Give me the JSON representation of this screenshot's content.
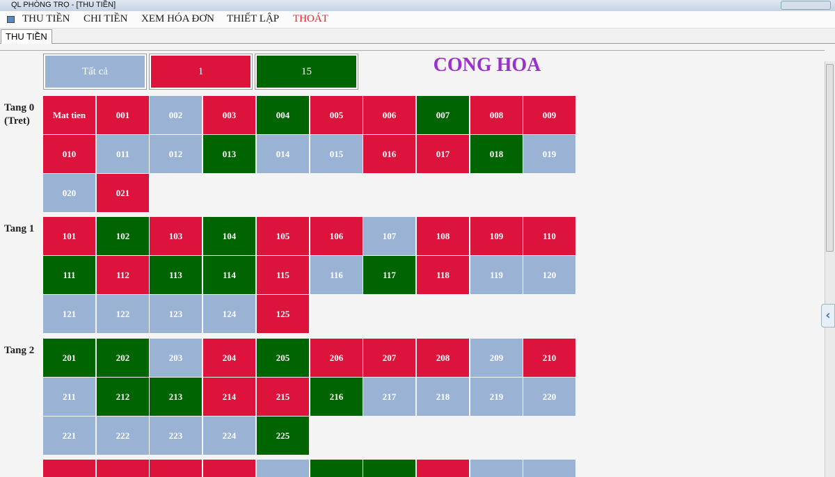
{
  "window": {
    "title": "QL PHÒNG TRỌ - [THU TIỀN]"
  },
  "menu": [
    {
      "label": "THU TIỀN",
      "color": "#1a1a1a"
    },
    {
      "label": "CHI TIỀN",
      "color": "#1a1a1a"
    },
    {
      "label": "XEM HÓA ĐƠN",
      "color": "#1a1a1a"
    },
    {
      "label": "THIẾT LẬP",
      "color": "#1a1a1a"
    },
    {
      "label": "THOÁT",
      "color": "#e0242c"
    }
  ],
  "tab": "THU TIỀN",
  "filters": [
    {
      "label": "Tất cả",
      "color": "#9ab3d5"
    },
    {
      "label": "1",
      "color": "#dc143c"
    },
    {
      "label": "15",
      "color": "#006400"
    }
  ],
  "heading": "CONG HOA",
  "floors": [
    {
      "label": [
        "Tang 0",
        "(Tret)"
      ],
      "rooms": [
        {
          "label": "Mat tien",
          "color": "#dc143c"
        },
        {
          "label": "001",
          "color": "#dc143c"
        },
        {
          "label": "002",
          "color": "#9ab3d5"
        },
        {
          "label": "003",
          "color": "#dc143c"
        },
        {
          "label": "004",
          "color": "#006400"
        },
        {
          "label": "005",
          "color": "#dc143c"
        },
        {
          "label": "006",
          "color": "#dc143c"
        },
        {
          "label": "007",
          "color": "#006400"
        },
        {
          "label": "008",
          "color": "#dc143c"
        },
        {
          "label": "009",
          "color": "#dc143c"
        },
        {
          "label": "010",
          "color": "#dc143c"
        },
        {
          "label": "011",
          "color": "#9ab3d5"
        },
        {
          "label": "012",
          "color": "#9ab3d5"
        },
        {
          "label": "013",
          "color": "#006400"
        },
        {
          "label": "014",
          "color": "#9ab3d5"
        },
        {
          "label": "015",
          "color": "#9ab3d5"
        },
        {
          "label": "016",
          "color": "#dc143c"
        },
        {
          "label": "017",
          "color": "#dc143c"
        },
        {
          "label": "018",
          "color": "#006400"
        },
        {
          "label": "019",
          "color": "#9ab3d5"
        },
        {
          "label": "020",
          "color": "#9ab3d5"
        },
        {
          "label": "021",
          "color": "#dc143c"
        }
      ]
    },
    {
      "label": [
        "Tang 1"
      ],
      "rooms": [
        {
          "label": "101",
          "color": "#dc143c"
        },
        {
          "label": "102",
          "color": "#006400"
        },
        {
          "label": "103",
          "color": "#dc143c"
        },
        {
          "label": "104",
          "color": "#006400"
        },
        {
          "label": "105",
          "color": "#dc143c"
        },
        {
          "label": "106",
          "color": "#dc143c"
        },
        {
          "label": "107",
          "color": "#9ab3d5"
        },
        {
          "label": "108",
          "color": "#dc143c"
        },
        {
          "label": "109",
          "color": "#dc143c"
        },
        {
          "label": "110",
          "color": "#dc143c"
        },
        {
          "label": "111",
          "color": "#006400"
        },
        {
          "label": "112",
          "color": "#dc143c"
        },
        {
          "label": "113",
          "color": "#006400"
        },
        {
          "label": "114",
          "color": "#006400"
        },
        {
          "label": "115",
          "color": "#dc143c"
        },
        {
          "label": "116",
          "color": "#9ab3d5"
        },
        {
          "label": "117",
          "color": "#006400"
        },
        {
          "label": "118",
          "color": "#dc143c"
        },
        {
          "label": "119",
          "color": "#9ab3d5"
        },
        {
          "label": "120",
          "color": "#9ab3d5"
        },
        {
          "label": "121",
          "color": "#9ab3d5"
        },
        {
          "label": "122",
          "color": "#9ab3d5"
        },
        {
          "label": "123",
          "color": "#9ab3d5"
        },
        {
          "label": "124",
          "color": "#9ab3d5"
        },
        {
          "label": "125",
          "color": "#dc143c"
        }
      ]
    },
    {
      "label": [
        "Tang 2"
      ],
      "rooms": [
        {
          "label": "201",
          "color": "#006400"
        },
        {
          "label": "202",
          "color": "#006400"
        },
        {
          "label": "203",
          "color": "#9ab3d5"
        },
        {
          "label": "204",
          "color": "#dc143c"
        },
        {
          "label": "205",
          "color": "#006400"
        },
        {
          "label": "206",
          "color": "#dc143c"
        },
        {
          "label": "207",
          "color": "#dc143c"
        },
        {
          "label": "208",
          "color": "#dc143c"
        },
        {
          "label": "209",
          "color": "#9ab3d5"
        },
        {
          "label": "210",
          "color": "#dc143c"
        },
        {
          "label": "211",
          "color": "#9ab3d5"
        },
        {
          "label": "212",
          "color": "#006400"
        },
        {
          "label": "213",
          "color": "#006400"
        },
        {
          "label": "214",
          "color": "#dc143c"
        },
        {
          "label": "215",
          "color": "#dc143c"
        },
        {
          "label": "216",
          "color": "#006400"
        },
        {
          "label": "217",
          "color": "#9ab3d5"
        },
        {
          "label": "218",
          "color": "#9ab3d5"
        },
        {
          "label": "219",
          "color": "#9ab3d5"
        },
        {
          "label": "220",
          "color": "#9ab3d5"
        },
        {
          "label": "221",
          "color": "#9ab3d5"
        },
        {
          "label": "222",
          "color": "#9ab3d5"
        },
        {
          "label": "223",
          "color": "#9ab3d5"
        },
        {
          "label": "224",
          "color": "#9ab3d5"
        },
        {
          "label": "225",
          "color": "#006400"
        }
      ]
    }
  ],
  "partial_row": [
    "#dc143c",
    "#dc143c",
    "#dc143c",
    "#dc143c",
    "#9ab3d5",
    "#006400",
    "#006400",
    "#dc143c",
    "#9ab3d5",
    "#9ab3d5"
  ]
}
